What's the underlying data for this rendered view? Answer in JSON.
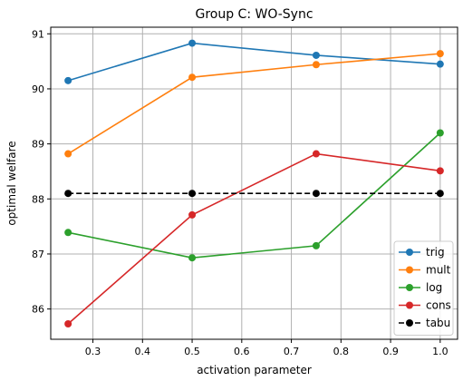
{
  "chart_data": {
    "type": "line",
    "title": "Group C: WO-Sync",
    "xlabel": "activation parameter",
    "ylabel": "optimal welfare",
    "xlim": [
      0.215,
      1.035
    ],
    "ylim": [
      85.45,
      91.12
    ],
    "xticks": [
      "0.3",
      "0.4",
      "0.5",
      "0.6",
      "0.7",
      "0.8",
      "0.9",
      "1.0"
    ],
    "yticks": [
      "86",
      "87",
      "88",
      "89",
      "90",
      "91"
    ],
    "x": [
      0.25,
      0.5,
      0.75,
      1.0
    ],
    "grid": true,
    "legend_position": "lower-right",
    "series": [
      {
        "name": "trig",
        "color": "#1f77b4",
        "style": "solid",
        "values": [
          90.15,
          90.83,
          90.61,
          90.45
        ]
      },
      {
        "name": "mult",
        "color": "#ff7f0e",
        "style": "solid",
        "values": [
          88.82,
          90.21,
          90.44,
          90.64
        ]
      },
      {
        "name": "log",
        "color": "#2ca02c",
        "style": "solid",
        "values": [
          87.39,
          86.93,
          87.15,
          89.2
        ]
      },
      {
        "name": "cons",
        "color": "#d62728",
        "style": "solid",
        "values": [
          85.73,
          87.71,
          88.82,
          88.51
        ]
      },
      {
        "name": "tabu",
        "color": "#000000",
        "style": "dashed",
        "values": [
          88.1,
          88.1,
          88.1,
          88.1
        ]
      }
    ]
  }
}
